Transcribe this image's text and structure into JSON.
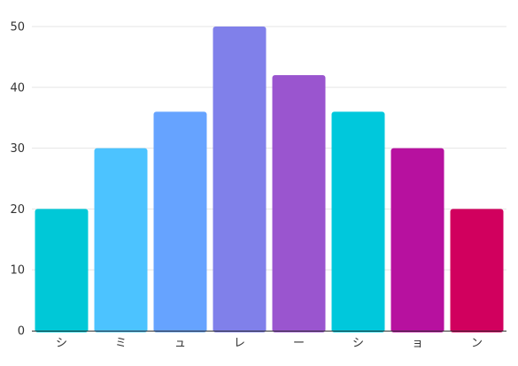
{
  "chart_data": {
    "type": "bar",
    "categories": [
      "シ",
      "ミ",
      "ュ",
      "レ",
      "ー",
      "シ",
      "ョ",
      "ン"
    ],
    "values": [
      20,
      30,
      36,
      50,
      42,
      36,
      30,
      20
    ],
    "colors": [
      "#00c8d7",
      "#4cc3ff",
      "#66a3ff",
      "#8080ea",
      "#9a55cf",
      "#00c8dc",
      "#b7119f",
      "#d1005e"
    ],
    "ylim": [
      0,
      50
    ],
    "yticks": [
      0,
      10,
      20,
      30,
      40,
      50
    ],
    "grid": true,
    "title": "",
    "xlabel": "",
    "ylabel": ""
  }
}
